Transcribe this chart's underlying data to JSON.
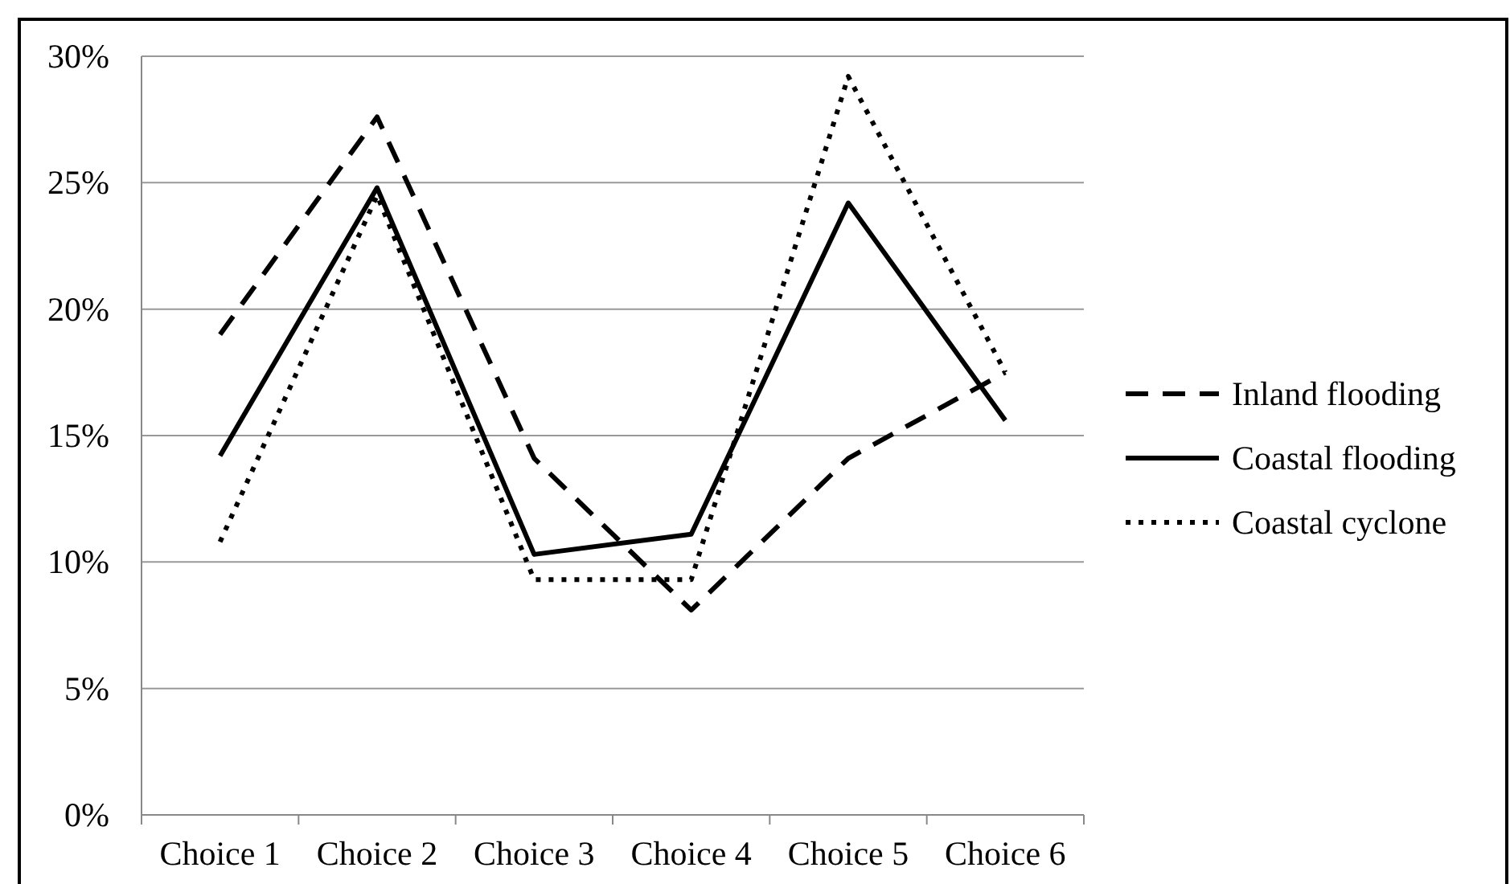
{
  "chart_data": {
    "type": "line",
    "categories": [
      "Choice 1",
      "Choice 2",
      "Choice 3",
      "Choice 4",
      "Choice 5",
      "Choice 6"
    ],
    "series": [
      {
        "name": "Inland flooding",
        "color": "#000000",
        "line_style": "dashed",
        "values": [
          19.0,
          27.6,
          14.1,
          8.1,
          14.1,
          17.5
        ]
      },
      {
        "name": "Coastal flooding",
        "color": "#000000",
        "line_style": "solid",
        "values": [
          14.2,
          24.8,
          10.3,
          11.1,
          24.2,
          15.6
        ]
      },
      {
        "name": "Coastal cyclone",
        "color": "#000000",
        "line_style": "dotted",
        "values": [
          10.8,
          24.5,
          9.3,
          9.3,
          29.2,
          17.5
        ]
      }
    ],
    "ylim": [
      0,
      30
    ],
    "yticks": [
      {
        "value": 0,
        "label": "0%"
      },
      {
        "value": 5,
        "label": "5%"
      },
      {
        "value": 10,
        "label": "10%"
      },
      {
        "value": 15,
        "label": "15%"
      },
      {
        "value": 20,
        "label": "20%"
      },
      {
        "value": 25,
        "label": "25%"
      },
      {
        "value": 30,
        "label": "30%"
      }
    ],
    "grid": "y",
    "legend": "right"
  }
}
